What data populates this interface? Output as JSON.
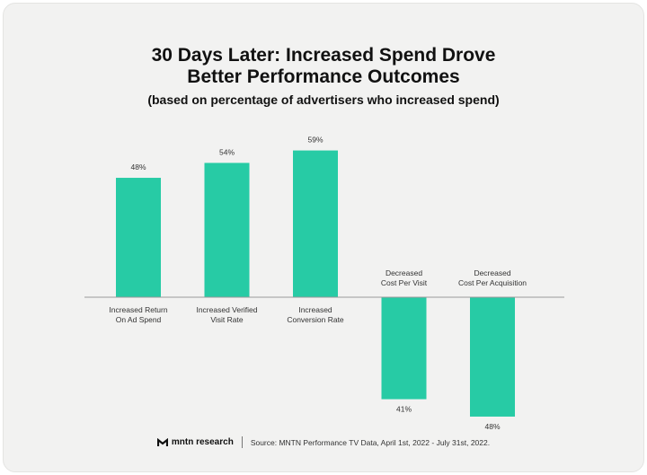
{
  "title_line1": "30 Days Later: Increased Spend Drove",
  "title_line2": "Better Performance Outcomes",
  "subtitle": "(based on percentage of advertisers who increased spend)",
  "colors": {
    "bar": "#27cba5",
    "baseline": "#9a9a9a",
    "background": "#f2f2f1",
    "text": "#111111"
  },
  "chart_data": {
    "type": "bar",
    "categories": [
      [
        "Increased Return",
        "On Ad Spend"
      ],
      [
        "Increased Verified",
        "Visit Rate"
      ],
      [
        "Increased",
        "Conversion Rate"
      ],
      [
        "Decreased",
        "Cost Per Visit"
      ],
      [
        "Decreased",
        "Cost Per Acquisition"
      ]
    ],
    "values": [
      48,
      54,
      59,
      -41,
      -48
    ],
    "data_labels": [
      "48%",
      "54%",
      "59%",
      "41%",
      "48%"
    ],
    "unit": "%",
    "grid": false,
    "legend": "none"
  },
  "footer": {
    "logo_text": "mntn research",
    "source": "Source: MNTN Performance TV Data, April 1st, 2022 - July 31st, 2022."
  }
}
